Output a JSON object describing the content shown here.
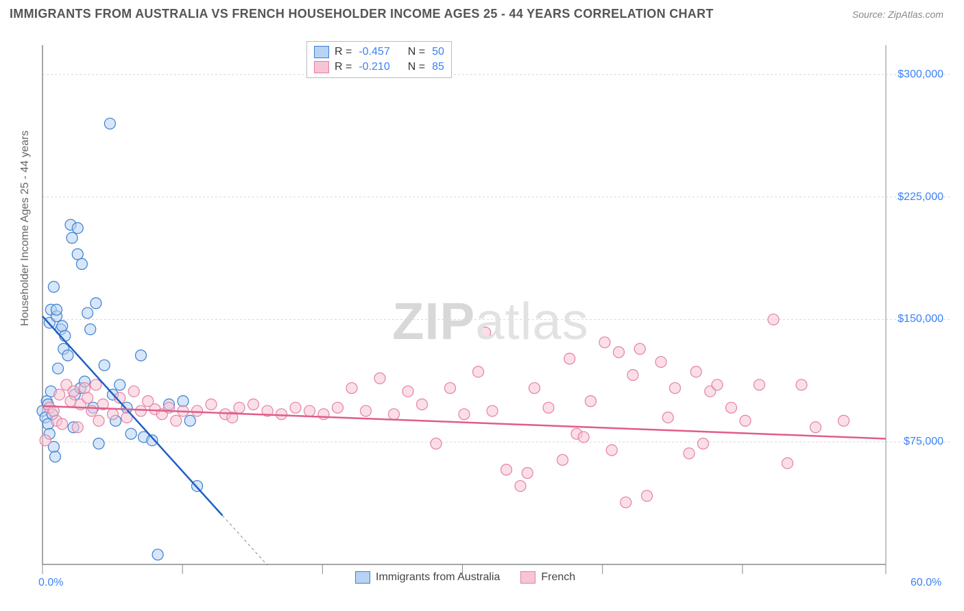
{
  "title": "IMMIGRANTS FROM AUSTRALIA VS FRENCH HOUSEHOLDER INCOME AGES 25 - 44 YEARS CORRELATION CHART",
  "source": "Source: ZipAtlas.com",
  "watermark": {
    "bold": "ZIP",
    "rest": "atlas"
  },
  "chart": {
    "type": "scatter",
    "ylabel": "Householder Income Ages 25 - 44 years",
    "background_color": "#ffffff",
    "grid_color": "#d8d8d8",
    "axis_color": "#888888",
    "xlim": [
      0,
      60
    ],
    "ylim": [
      0,
      318000
    ],
    "x_unit": "%",
    "y_unit": "$",
    "x_tick_start_label": "0.0%",
    "x_tick_end_label": "60.0%",
    "x_tick_positions_pct": [
      0,
      16.6,
      33.2,
      49.8,
      66.4,
      83.0,
      100.0
    ],
    "y_ticks": [
      {
        "value": 75000,
        "label": "$75,000"
      },
      {
        "value": 150000,
        "label": "$150,000"
      },
      {
        "value": 225000,
        "label": "$225,000"
      },
      {
        "value": 300000,
        "label": "$300,000"
      }
    ],
    "marker_radius": 8,
    "marker_opacity": 0.55,
    "line_width": 2.5,
    "tick_font_size": 16,
    "tick_font_color": "#3b82f6",
    "label_font_size": 16,
    "label_font_color": "#666666",
    "legend_top": [
      {
        "swatch_fill": "#b7d2f3",
        "swatch_stroke": "#3b7ed0",
        "r_label": "R = ",
        "r_value": "-0.457",
        "n_label": "N = ",
        "n_value": "50"
      },
      {
        "swatch_fill": "#f6c5d3",
        "swatch_stroke": "#e67ca0",
        "r_label": "R = ",
        "r_value": "-0.210",
        "n_label": "N = ",
        "n_value": "85"
      }
    ],
    "legend_bottom": [
      {
        "swatch_fill": "#b7d2f3",
        "swatch_stroke": "#3b7ed0",
        "label": "Immigrants from Australia"
      },
      {
        "swatch_fill": "#f6c5d3",
        "swatch_stroke": "#e67ca0",
        "label": "French"
      }
    ],
    "series": [
      {
        "name": "Immigrants from Australia",
        "color_fill": "#b7d2f3",
        "color_stroke": "#3b7ed0",
        "trend_line_color": "#1e5fc4",
        "trend": {
          "x1": 0,
          "y1": 152000,
          "x2": 12.8,
          "y2": 30000,
          "dash_extend_to_x": 16.0
        },
        "points": [
          [
            0.0,
            94000
          ],
          [
            0.2,
            90000
          ],
          [
            0.3,
            100000
          ],
          [
            0.4,
            86000
          ],
          [
            0.4,
            98000
          ],
          [
            0.5,
            80000
          ],
          [
            0.5,
            148000
          ],
          [
            0.6,
            106000
          ],
          [
            0.6,
            156000
          ],
          [
            0.7,
            92000
          ],
          [
            0.8,
            72000
          ],
          [
            0.8,
            170000
          ],
          [
            0.9,
            66000
          ],
          [
            1.0,
            152000
          ],
          [
            1.0,
            156000
          ],
          [
            1.1,
            120000
          ],
          [
            1.3,
            144000
          ],
          [
            1.4,
            146000
          ],
          [
            1.5,
            132000
          ],
          [
            1.6,
            140000
          ],
          [
            1.8,
            128000
          ],
          [
            2.0,
            208000
          ],
          [
            2.1,
            200000
          ],
          [
            2.2,
            84000
          ],
          [
            2.3,
            104000
          ],
          [
            2.5,
            190000
          ],
          [
            2.5,
            206000
          ],
          [
            2.7,
            108000
          ],
          [
            2.8,
            184000
          ],
          [
            3.0,
            112000
          ],
          [
            3.2,
            154000
          ],
          [
            3.4,
            144000
          ],
          [
            3.6,
            96000
          ],
          [
            3.8,
            160000
          ],
          [
            4.0,
            74000
          ],
          [
            4.4,
            122000
          ],
          [
            4.8,
            270000
          ],
          [
            5.0,
            104000
          ],
          [
            5.2,
            88000
          ],
          [
            5.5,
            110000
          ],
          [
            6.0,
            96000
          ],
          [
            6.3,
            80000
          ],
          [
            7.0,
            128000
          ],
          [
            7.2,
            78000
          ],
          [
            7.8,
            76000
          ],
          [
            8.2,
            6000
          ],
          [
            9.0,
            98000
          ],
          [
            10.0,
            100000
          ],
          [
            10.5,
            88000
          ],
          [
            11.0,
            48000
          ]
        ]
      },
      {
        "name": "French",
        "color_fill": "#f6c5d3",
        "color_stroke": "#e580a3",
        "trend_line_color": "#e05c8a",
        "trend": {
          "x1": 0,
          "y1": 97000,
          "x2": 60,
          "y2": 77000
        },
        "points": [
          [
            0.2,
            76000
          ],
          [
            0.5,
            96000
          ],
          [
            0.8,
            94000
          ],
          [
            1.0,
            88000
          ],
          [
            1.2,
            104000
          ],
          [
            1.4,
            86000
          ],
          [
            1.7,
            110000
          ],
          [
            2.0,
            100000
          ],
          [
            2.2,
            106000
          ],
          [
            2.5,
            84000
          ],
          [
            2.7,
            98000
          ],
          [
            3.0,
            108000
          ],
          [
            3.2,
            102000
          ],
          [
            3.5,
            94000
          ],
          [
            3.8,
            110000
          ],
          [
            4.0,
            88000
          ],
          [
            4.3,
            98000
          ],
          [
            5.0,
            92000
          ],
          [
            5.5,
            102000
          ],
          [
            6.0,
            90000
          ],
          [
            6.5,
            106000
          ],
          [
            7.0,
            94000
          ],
          [
            7.5,
            100000
          ],
          [
            8.0,
            95000
          ],
          [
            8.5,
            92000
          ],
          [
            9.0,
            96000
          ],
          [
            9.5,
            88000
          ],
          [
            10.0,
            94000
          ],
          [
            11.0,
            94000
          ],
          [
            12.0,
            98000
          ],
          [
            13.0,
            92000
          ],
          [
            13.5,
            90000
          ],
          [
            14.0,
            96000
          ],
          [
            15.0,
            98000
          ],
          [
            16.0,
            94000
          ],
          [
            17.0,
            92000
          ],
          [
            18.0,
            96000
          ],
          [
            19.0,
            94000
          ],
          [
            20.0,
            92000
          ],
          [
            21.0,
            96000
          ],
          [
            22.0,
            108000
          ],
          [
            23.0,
            94000
          ],
          [
            24.0,
            114000
          ],
          [
            25.0,
            92000
          ],
          [
            26.0,
            106000
          ],
          [
            27.0,
            98000
          ],
          [
            28.0,
            74000
          ],
          [
            29.0,
            108000
          ],
          [
            30.0,
            92000
          ],
          [
            31.0,
            118000
          ],
          [
            31.5,
            142000
          ],
          [
            32.0,
            94000
          ],
          [
            33.0,
            58000
          ],
          [
            34.0,
            48000
          ],
          [
            34.5,
            56000
          ],
          [
            35.0,
            108000
          ],
          [
            36.0,
            96000
          ],
          [
            37.0,
            64000
          ],
          [
            37.5,
            126000
          ],
          [
            38.0,
            80000
          ],
          [
            38.5,
            78000
          ],
          [
            39.0,
            100000
          ],
          [
            40.0,
            136000
          ],
          [
            40.5,
            70000
          ],
          [
            41.0,
            130000
          ],
          [
            41.5,
            38000
          ],
          [
            42.0,
            116000
          ],
          [
            42.5,
            132000
          ],
          [
            43.0,
            42000
          ],
          [
            44.0,
            124000
          ],
          [
            44.5,
            90000
          ],
          [
            45.0,
            108000
          ],
          [
            46.0,
            68000
          ],
          [
            46.5,
            118000
          ],
          [
            47.0,
            74000
          ],
          [
            47.5,
            106000
          ],
          [
            48.0,
            110000
          ],
          [
            49.0,
            96000
          ],
          [
            50.0,
            88000
          ],
          [
            51.0,
            110000
          ],
          [
            52.0,
            150000
          ],
          [
            53.0,
            62000
          ],
          [
            54.0,
            110000
          ],
          [
            55.0,
            84000
          ],
          [
            57.0,
            88000
          ]
        ]
      }
    ]
  }
}
